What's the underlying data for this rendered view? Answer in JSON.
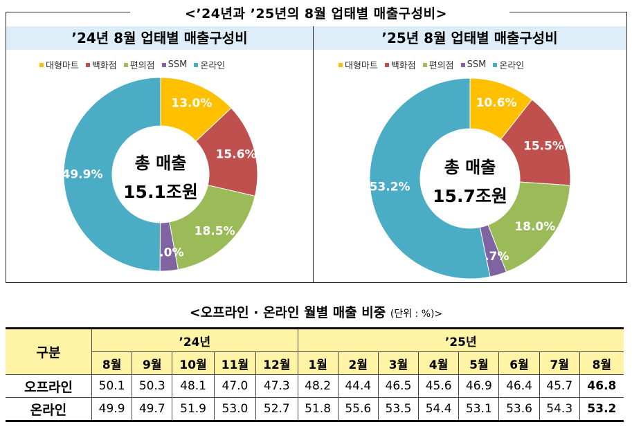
{
  "title": "<’24년과 ’25년의 8월 업태별 매출구성비>",
  "colors": {
    "대형마트": "#FFC000",
    "백화점": "#C0504D",
    "편의점": "#9BBB59",
    "SSM": "#8064A2",
    "온라인": "#4BACC6"
  },
  "chart_data": [
    {
      "type": "pie",
      "title": "’24년 8월 업태별 매출구성비",
      "categories": [
        "대형마트",
        "백화점",
        "편의점",
        "SSM",
        "온라인"
      ],
      "values": [
        13.0,
        15.6,
        18.5,
        3.0,
        49.9
      ],
      "labels": [
        "13.0%",
        "15.6%",
        "18.5%",
        "3.0%",
        "49.9%"
      ],
      "center_label": "총 매출",
      "center_value": "15.1조원",
      "legend": "top"
    },
    {
      "type": "pie",
      "title": "’25년 8월 업태별 매출구성비",
      "categories": [
        "대형마트",
        "백화점",
        "편의점",
        "SSM",
        "온라인"
      ],
      "values": [
        10.6,
        15.5,
        18.0,
        2.7,
        53.2
      ],
      "labels": [
        "10.6%",
        "15.5%",
        "18.0%",
        "2.7%",
        "53.2%"
      ],
      "center_label": "총 매출",
      "center_value": "15.7조원",
      "legend": "top"
    },
    {
      "type": "table",
      "title": "<오프라인 · 온라인 월별 매출 비중",
      "unit": "(단위 : %)>",
      "corner": "구분",
      "years": [
        "’24년",
        "’25년"
      ],
      "months": [
        "8월",
        "9월",
        "10월",
        "11월",
        "12월",
        "1월",
        "2월",
        "3월",
        "4월",
        "5월",
        "6월",
        "7월",
        "8월"
      ],
      "rows": [
        {
          "label": "오프라인",
          "values": [
            "50.1",
            "50.3",
            "48.1",
            "47.0",
            "47.3",
            "48.2",
            "44.4",
            "46.5",
            "45.6",
            "46.9",
            "46.4",
            "45.7",
            "46.8"
          ]
        },
        {
          "label": "온라인",
          "values": [
            "49.9",
            "49.7",
            "51.9",
            "53.0",
            "52.7",
            "51.8",
            "55.6",
            "53.5",
            "54.4",
            "53.1",
            "53.6",
            "54.3",
            "53.2"
          ]
        }
      ]
    }
  ]
}
